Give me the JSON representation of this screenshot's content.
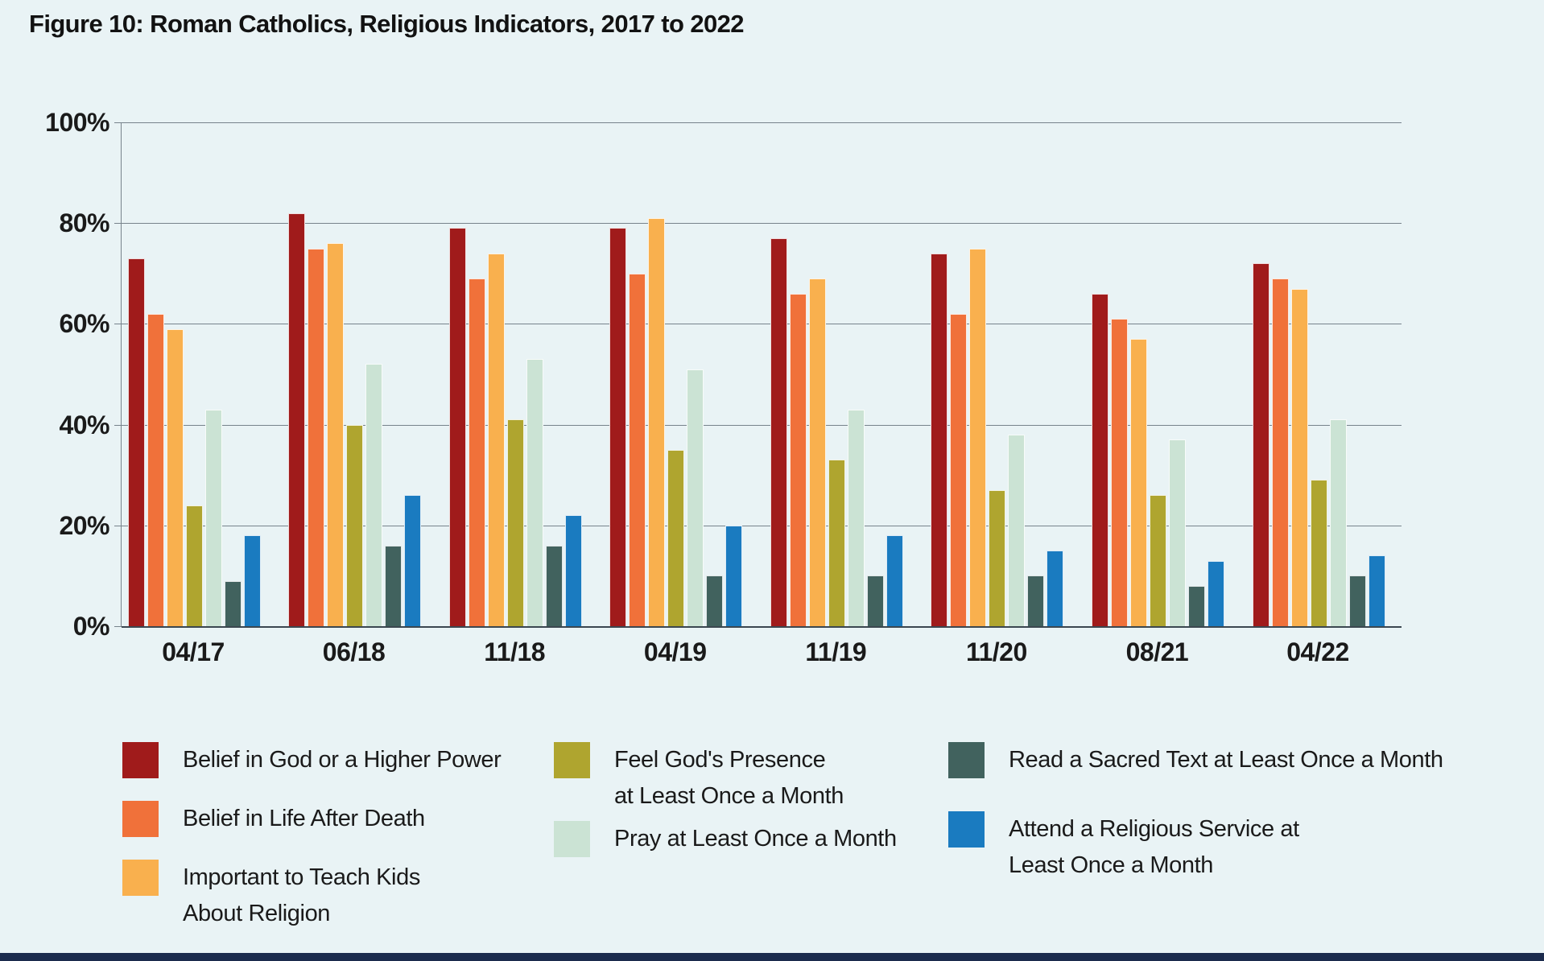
{
  "title": "Figure 10: Roman Catholics, Religious Indicators, 2017 to 2022",
  "colors": {
    "background": "#E9F3F5",
    "gridline": "#77838c",
    "axis_zero_line": "#3b4750",
    "bottom_strip": "#1B2B4D",
    "text": "#1a1a1a"
  },
  "chart_data": {
    "type": "bar",
    "title": "Figure 10: Roman Catholics, Religious Indicators, 2017 to 2022",
    "categories": [
      "04/17",
      "06/18",
      "11/18",
      "04/19",
      "11/19",
      "11/20",
      "08/21",
      "04/22"
    ],
    "series": [
      {
        "key": "belief_god",
        "name": "Belief in God or a Higher Power",
        "color": "#A01B1B",
        "values": [
          73,
          82,
          79,
          79,
          77,
          74,
          66,
          72
        ]
      },
      {
        "key": "afterlife",
        "name": "Belief in Life After Death",
        "color": "#F0713A",
        "values": [
          62,
          75,
          69,
          70,
          66,
          62,
          61,
          69
        ]
      },
      {
        "key": "teach_kids",
        "name": "Important to Teach Kids About Religion",
        "color": "#F9B04E",
        "values": [
          59,
          76,
          74,
          81,
          69,
          75,
          57,
          67
        ]
      },
      {
        "key": "presence",
        "name": "Feel God's Presence at Least Once a Month",
        "color": "#AFA52F",
        "values": [
          24,
          40,
          41,
          35,
          33,
          27,
          26,
          29
        ]
      },
      {
        "key": "pray",
        "name": "Pray at Least Once a Month",
        "color": "#CBE3D4",
        "values": [
          43,
          52,
          53,
          51,
          43,
          38,
          37,
          41
        ]
      },
      {
        "key": "sacred_text",
        "name": "Read a Sacred Text at Least Once a Month",
        "color": "#41625E",
        "values": [
          9,
          16,
          16,
          10,
          10,
          10,
          8,
          10
        ]
      },
      {
        "key": "attend",
        "name": "Attend a Religious Service at Least Once a Month",
        "color": "#1A7BC0",
        "values": [
          18,
          26,
          22,
          20,
          18,
          15,
          13,
          14
        ]
      }
    ],
    "xlabel": "",
    "ylabel": "",
    "ylim": [
      0,
      100
    ],
    "y_ticks": [
      0,
      20,
      40,
      60,
      80,
      100
    ],
    "y_tick_suffix": "%",
    "grid": true,
    "legend_position": "bottom"
  },
  "legend": {
    "items": [
      {
        "series": "belief_god",
        "label_lines": [
          "Belief in God or a Higher Power"
        ]
      },
      {
        "series": "afterlife",
        "label_lines": [
          "Belief in Life After Death"
        ]
      },
      {
        "series": "teach_kids",
        "label_lines": [
          "Important to Teach Kids",
          "About Religion"
        ]
      },
      {
        "series": "presence",
        "label_lines": [
          "Feel God's Presence",
          "at Least Once a Month"
        ]
      },
      {
        "series": "pray",
        "label_lines": [
          "Pray at Least Once a Month"
        ]
      },
      {
        "series": "sacred_text",
        "label_lines": [
          "Read a Sacred Text at Least Once a Month"
        ]
      },
      {
        "series": "attend",
        "label_lines": [
          "Attend a Religious Service at",
          "Least Once a Month"
        ]
      }
    ]
  }
}
